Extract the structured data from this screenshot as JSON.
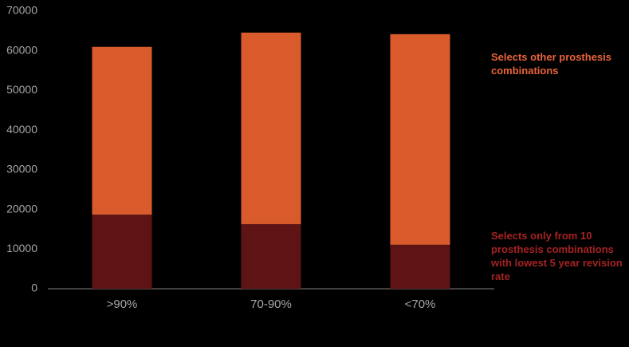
{
  "chart_data": {
    "type": "stacked_bar",
    "categories": [
      ">90%",
      "70-90%",
      "<70%"
    ],
    "series": [
      {
        "name": "Selects only from 10 prosthesis combinations with lowest 5 year revision rate",
        "color": "#5e1414",
        "legend_color": "#a52222",
        "values": [
          18700,
          16300,
          11100
        ]
      },
      {
        "name": "Selects other prosthesis combinations",
        "color": "#d95b2b",
        "legend_color": "#e8643a",
        "values": [
          42300,
          48300,
          53100
        ]
      }
    ],
    "ylim": [
      0,
      70000
    ],
    "yticks": [
      0,
      10000,
      20000,
      30000,
      40000,
      50000,
      60000,
      70000
    ],
    "grid": false
  }
}
